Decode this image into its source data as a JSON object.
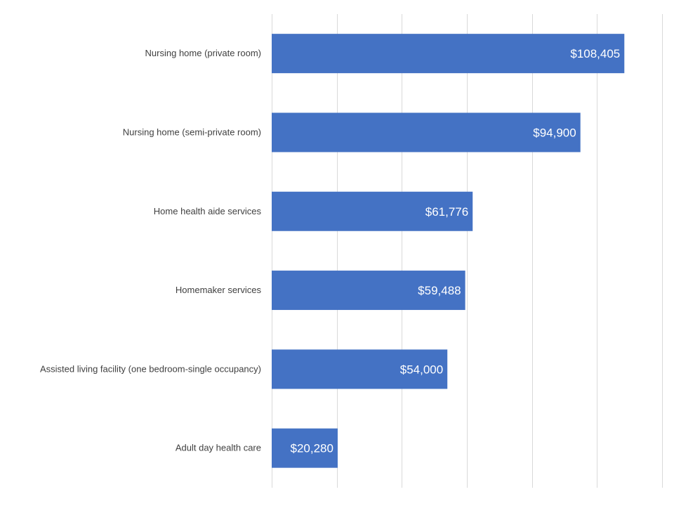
{
  "chart_data": {
    "type": "bar",
    "orientation": "horizontal",
    "categories": [
      "Nursing home (private room)",
      "Nursing home (semi-private room)",
      "Home health aide services",
      "Homemaker services",
      "Assisted living facility (one bedroom-single occupancy)",
      "Adult day health care"
    ],
    "values": [
      108405,
      94900,
      61776,
      59488,
      54000,
      20280
    ],
    "data_labels": [
      "$108,405",
      "$94,900",
      "$61,776",
      "$59,488",
      "$54,000",
      "$20,280"
    ],
    "xlim": [
      0,
      120000
    ],
    "major_gridline_step": 20000,
    "grid": true,
    "tick_labels_shown": false,
    "legend": "none",
    "bar_color": "#4472c4",
    "grid_color": "#d9d9d9",
    "label_color": "#404040"
  }
}
